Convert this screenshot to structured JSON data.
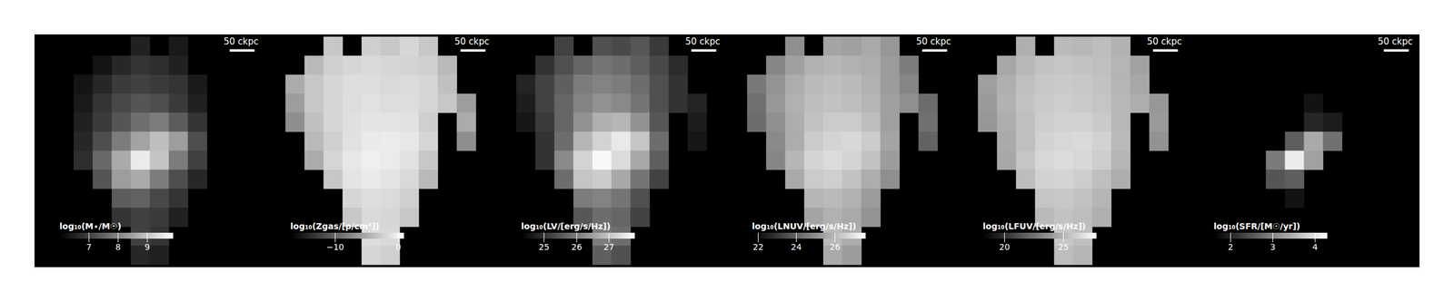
{
  "chart_data": [
    {
      "type": "heatmap",
      "tick_labels": false,
      "scale_bar": "50 ckpc",
      "colorbar": {
        "label": "log₁₀(M⋆/M☉)",
        "range": [
          6.0,
          9.9
        ],
        "ticks": [
          7,
          8,
          9
        ]
      },
      "cells": [
        [
          null,
          null,
          null,
          null,
          null,
          6.5,
          null,
          6.4,
          null,
          null,
          null,
          null
        ],
        [
          null,
          null,
          null,
          6.3,
          6.6,
          6.8,
          6.7,
          6.5,
          null,
          null,
          null,
          null
        ],
        [
          null,
          null,
          6.3,
          6.6,
          6.9,
          7.0,
          6.9,
          6.8,
          6.4,
          null,
          null,
          null
        ],
        [
          null,
          null,
          6.4,
          6.8,
          7.1,
          7.3,
          7.2,
          6.9,
          6.5,
          null,
          null,
          null
        ],
        [
          null,
          null,
          6.5,
          6.9,
          7.3,
          7.7,
          7.9,
          7.4,
          6.8,
          null,
          null,
          null
        ],
        [
          null,
          null,
          6.6,
          7.2,
          7.9,
          8.5,
          8.9,
          8.4,
          7.2,
          null,
          null,
          null
        ],
        [
          null,
          null,
          6.7,
          7.6,
          8.6,
          9.6,
          9.0,
          7.9,
          7.0,
          null,
          null,
          null
        ],
        [
          null,
          null,
          null,
          7.3,
          8.4,
          8.6,
          7.9,
          7.2,
          6.6,
          null,
          null,
          null
        ],
        [
          null,
          null,
          null,
          null,
          7.4,
          7.5,
          7.1,
          6.8,
          null,
          null,
          null,
          null
        ],
        [
          null,
          null,
          null,
          null,
          6.8,
          7.0,
          6.9,
          6.5,
          null,
          null,
          null,
          null
        ],
        [
          null,
          null,
          null,
          null,
          null,
          7.0,
          6.8,
          null,
          null,
          null,
          null,
          null
        ],
        [
          null,
          null,
          null,
          null,
          null,
          6.6,
          6.5,
          null,
          null,
          null,
          null,
          null
        ]
      ]
    },
    {
      "type": "heatmap",
      "tick_labels": false,
      "scale_bar": "50 ckpc",
      "colorbar": {
        "label": "log₁₀(Zgas/[p/cm²])",
        "range": [
          -17,
          0.9
        ],
        "ticks": [
          {
            "value": -10,
            "label": "−10"
          },
          0
        ]
      },
      "cells": [
        [
          null,
          null,
          null,
          -3,
          null,
          -2.5,
          -3,
          -2,
          -3,
          null,
          null,
          null
        ],
        [
          null,
          null,
          -4,
          -2.5,
          -2,
          -1.8,
          -2,
          -2.2,
          -2.5,
          -4,
          null,
          null
        ],
        [
          null,
          -5,
          -3,
          -2,
          -1.5,
          -1.5,
          -1.8,
          -1.6,
          -2,
          -3.5,
          null,
          null
        ],
        [
          null,
          -6,
          -3,
          -2,
          -1.4,
          -1.2,
          -1.5,
          -1.4,
          -2,
          -3,
          -6,
          null
        ],
        [
          null,
          -7,
          -3.5,
          -2,
          -1.3,
          -1,
          -1,
          -1.2,
          -2.5,
          null,
          -5,
          null
        ],
        [
          null,
          null,
          -4,
          -2.5,
          -1.2,
          -0.6,
          -0.4,
          -0.8,
          -2,
          null,
          -7,
          null
        ],
        [
          null,
          null,
          -5,
          -2,
          -0.8,
          -0.2,
          -0.5,
          -1.2,
          -3,
          null,
          null,
          null
        ],
        [
          null,
          null,
          null,
          -3,
          -1,
          -0.6,
          -1,
          -1.8,
          -4,
          null,
          null,
          null
        ],
        [
          null,
          null,
          null,
          null,
          -2,
          -1.5,
          -1.6,
          -2.5,
          null,
          null,
          null,
          null
        ],
        [
          null,
          null,
          null,
          null,
          -3,
          -1.8,
          -2,
          -3,
          null,
          null,
          null,
          null
        ],
        [
          null,
          null,
          null,
          null,
          null,
          -1.5,
          -1.8,
          null,
          null,
          null,
          null,
          null
        ],
        [
          null,
          null,
          null,
          null,
          null,
          -2,
          -2.5,
          null,
          null,
          null,
          null,
          null
        ]
      ]
    },
    {
      "type": "heatmap",
      "tick_labels": false,
      "scale_bar": "50 ckpc",
      "colorbar": {
        "label": "log₁₀(LV/[erg/s/Hz])",
        "range": [
          24.3,
          27.8
        ],
        "ticks": [
          25,
          26,
          27
        ]
      },
      "cells": [
        [
          null,
          null,
          null,
          25.2,
          null,
          25.4,
          25.3,
          25.5,
          25.1,
          null,
          null,
          null
        ],
        [
          null,
          null,
          25.0,
          25.4,
          25.7,
          25.9,
          25.8,
          25.6,
          25.3,
          24.9,
          null,
          null
        ],
        [
          null,
          24.8,
          25.2,
          25.6,
          26.0,
          26.1,
          26.0,
          25.8,
          25.4,
          25.0,
          null,
          null
        ],
        [
          null,
          24.7,
          25.2,
          25.7,
          26.1,
          26.3,
          26.2,
          25.9,
          25.4,
          25.0,
          24.8,
          null
        ],
        [
          null,
          24.6,
          25.1,
          25.7,
          26.3,
          26.7,
          26.8,
          26.3,
          25.5,
          null,
          24.7,
          null
        ],
        [
          null,
          null,
          25.0,
          25.8,
          26.8,
          27.2,
          27.5,
          27.0,
          25.8,
          null,
          24.6,
          null
        ],
        [
          null,
          null,
          25.0,
          26.2,
          27.2,
          27.7,
          27.3,
          26.6,
          25.6,
          null,
          null,
          null
        ],
        [
          null,
          null,
          null,
          25.8,
          27.0,
          27.1,
          26.6,
          25.9,
          25.2,
          null,
          null,
          null
        ],
        [
          null,
          null,
          null,
          null,
          26.0,
          26.1,
          25.9,
          25.4,
          null,
          null,
          null,
          null
        ],
        [
          null,
          null,
          null,
          null,
          25.5,
          25.8,
          25.7,
          25.2,
          null,
          null,
          null,
          null
        ],
        [
          null,
          null,
          null,
          null,
          null,
          26.0,
          25.8,
          null,
          null,
          null,
          null,
          null
        ],
        [
          null,
          null,
          null,
          null,
          null,
          25.6,
          25.4,
          null,
          null,
          null,
          null,
          null
        ]
      ]
    },
    {
      "type": "heatmap",
      "tick_labels": false,
      "scale_bar": "50 ckpc",
      "colorbar": {
        "label": "log₁₀(LNUV/[erg/s/Hz])",
        "range": [
          21.7,
          27.6
        ],
        "ticks": [
          22,
          24,
          26
        ]
      },
      "cells": [
        [
          null,
          null,
          null,
          25.0,
          null,
          25.5,
          25.4,
          25.6,
          25.2,
          null,
          null,
          null
        ],
        [
          null,
          null,
          24.8,
          25.4,
          25.8,
          25.9,
          25.8,
          25.7,
          25.3,
          24.6,
          null,
          null
        ],
        [
          null,
          24.5,
          25.1,
          25.7,
          26.0,
          26.1,
          26.0,
          25.8,
          25.3,
          24.8,
          null,
          null
        ],
        [
          null,
          24.3,
          25.2,
          25.8,
          26.1,
          26.2,
          26.1,
          25.9,
          25.4,
          25.0,
          24.2,
          null
        ],
        [
          null,
          24.2,
          25.0,
          25.7,
          26.2,
          26.4,
          26.4,
          26.1,
          25.4,
          null,
          24.3,
          null
        ],
        [
          null,
          null,
          24.9,
          25.7,
          26.4,
          26.6,
          26.7,
          26.4,
          25.5,
          null,
          24.0,
          null
        ],
        [
          null,
          null,
          24.8,
          25.9,
          26.6,
          26.8,
          26.6,
          26.2,
          25.3,
          null,
          null,
          null
        ],
        [
          null,
          null,
          null,
          25.6,
          26.4,
          26.5,
          26.2,
          25.7,
          25.0,
          null,
          null,
          null
        ],
        [
          null,
          null,
          null,
          null,
          25.9,
          26.0,
          25.8,
          25.3,
          null,
          null,
          null,
          null
        ],
        [
          null,
          null,
          null,
          null,
          25.5,
          25.8,
          25.6,
          25.1,
          null,
          null,
          null,
          null
        ],
        [
          null,
          null,
          null,
          null,
          null,
          26.0,
          25.7,
          null,
          null,
          null,
          null,
          null
        ],
        [
          null,
          null,
          null,
          null,
          null,
          25.6,
          25.3,
          null,
          null,
          null,
          null,
          null
        ]
      ]
    },
    {
      "type": "heatmap",
      "tick_labels": false,
      "scale_bar": "50 ckpc",
      "colorbar": {
        "label": "log₁₀(LFUV/[erg/s/Hz])",
        "range": [
          18.2,
          27.8
        ],
        "ticks": [
          20,
          25
        ]
      },
      "cells": [
        [
          null,
          null,
          null,
          24.8,
          null,
          25.2,
          25.1,
          25.3,
          24.9,
          null,
          null,
          null
        ],
        [
          null,
          null,
          24.5,
          25.1,
          25.5,
          25.6,
          25.5,
          25.4,
          25.0,
          24.3,
          null,
          null
        ],
        [
          null,
          24.2,
          24.8,
          25.4,
          25.7,
          25.8,
          25.7,
          25.5,
          25.0,
          24.5,
          null,
          null
        ],
        [
          null,
          24.0,
          24.9,
          25.5,
          25.8,
          25.9,
          25.8,
          25.6,
          25.1,
          24.7,
          23.9,
          null
        ],
        [
          null,
          23.9,
          24.7,
          25.4,
          25.9,
          26.1,
          26.1,
          25.8,
          25.1,
          null,
          24.0,
          null
        ],
        [
          null,
          null,
          24.6,
          25.4,
          26.1,
          26.3,
          26.4,
          26.1,
          25.2,
          null,
          23.7,
          null
        ],
        [
          null,
          null,
          24.5,
          25.6,
          26.3,
          26.5,
          26.3,
          25.9,
          25.0,
          null,
          null,
          null
        ],
        [
          null,
          null,
          null,
          25.3,
          26.1,
          26.2,
          25.9,
          25.4,
          24.7,
          null,
          null,
          null
        ],
        [
          null,
          null,
          null,
          null,
          25.6,
          25.7,
          25.5,
          25.0,
          null,
          null,
          null,
          null
        ],
        [
          null,
          null,
          null,
          null,
          25.2,
          25.5,
          25.3,
          24.8,
          null,
          null,
          null,
          null
        ],
        [
          null,
          null,
          null,
          null,
          null,
          25.7,
          25.4,
          null,
          null,
          null,
          null,
          null
        ],
        [
          null,
          null,
          null,
          null,
          null,
          25.3,
          25.0,
          null,
          null,
          null,
          null,
          null
        ]
      ]
    },
    {
      "type": "heatmap",
      "tick_labels": false,
      "scale_bar": "50 ckpc",
      "colorbar": {
        "label": "log₁₀(SFR/[M☉/yr])",
        "range": [
          1.6,
          4.3
        ],
        "ticks": [
          2,
          3,
          4
        ]
      },
      "cells": [
        [
          null,
          null,
          null,
          null,
          null,
          null,
          null,
          null,
          null,
          null,
          null,
          null
        ],
        [
          null,
          null,
          null,
          null,
          null,
          null,
          null,
          null,
          null,
          null,
          null,
          null
        ],
        [
          null,
          null,
          null,
          null,
          null,
          null,
          null,
          null,
          null,
          null,
          null,
          null
        ],
        [
          null,
          null,
          null,
          null,
          null,
          null,
          1.8,
          null,
          null,
          null,
          null,
          null
        ],
        [
          null,
          null,
          null,
          null,
          null,
          null,
          2.0,
          1.9,
          null,
          null,
          null,
          null
        ],
        [
          null,
          null,
          null,
          null,
          null,
          2.6,
          3.4,
          2.8,
          null,
          null,
          null,
          null
        ],
        [
          null,
          null,
          null,
          null,
          2.9,
          4.1,
          3.3,
          null,
          null,
          null,
          null,
          null
        ],
        [
          null,
          null,
          null,
          null,
          2.5,
          2.6,
          null,
          null,
          null,
          null,
          null,
          null
        ],
        [
          null,
          null,
          null,
          null,
          null,
          1.8,
          null,
          null,
          null,
          null,
          null,
          null
        ],
        [
          null,
          null,
          null,
          null,
          null,
          null,
          null,
          null,
          null,
          null,
          null,
          null
        ],
        [
          null,
          null,
          null,
          null,
          null,
          null,
          null,
          null,
          null,
          null,
          null,
          null
        ],
        [
          null,
          null,
          null,
          null,
          null,
          null,
          null,
          null,
          null,
          null,
          null,
          null
        ]
      ]
    }
  ]
}
